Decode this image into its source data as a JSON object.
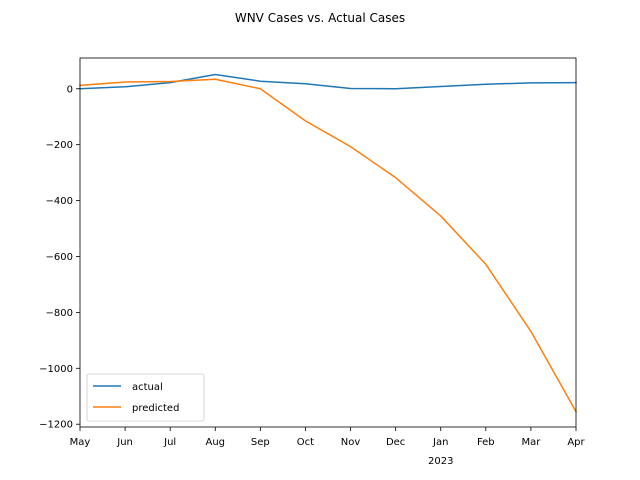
{
  "chart_data": {
    "type": "line",
    "title": "WNV Cases vs. Actual Cases",
    "xlabel": "",
    "ylabel": "",
    "categories": [
      "May",
      "Jun",
      "Jul",
      "Aug",
      "Sep",
      "Oct",
      "Nov",
      "Dec",
      "Jan",
      "Feb",
      "Mar",
      "Apr"
    ],
    "year_label": "2023",
    "year_label_under": "Jan",
    "ylim": [
      -1210,
      110
    ],
    "yticks": [
      0,
      -200,
      -400,
      -600,
      -800,
      -1000,
      -1200
    ],
    "ytick_labels": [
      "0",
      "−200",
      "−400",
      "−600",
      "−800",
      "−1000",
      "−1200"
    ],
    "grid": false,
    "legend_position": "lower-left",
    "series": [
      {
        "name": "actual",
        "color": "#1f77b4",
        "values": [
          0,
          7,
          22,
          51,
          27,
          18,
          1,
          0,
          8,
          16,
          21,
          22
        ]
      },
      {
        "name": "predicted",
        "color": "#ff7f0e",
        "values": [
          12,
          24,
          26,
          34,
          0,
          -115,
          -207,
          -318,
          -455,
          -628,
          -868,
          -1155
        ]
      }
    ]
  }
}
